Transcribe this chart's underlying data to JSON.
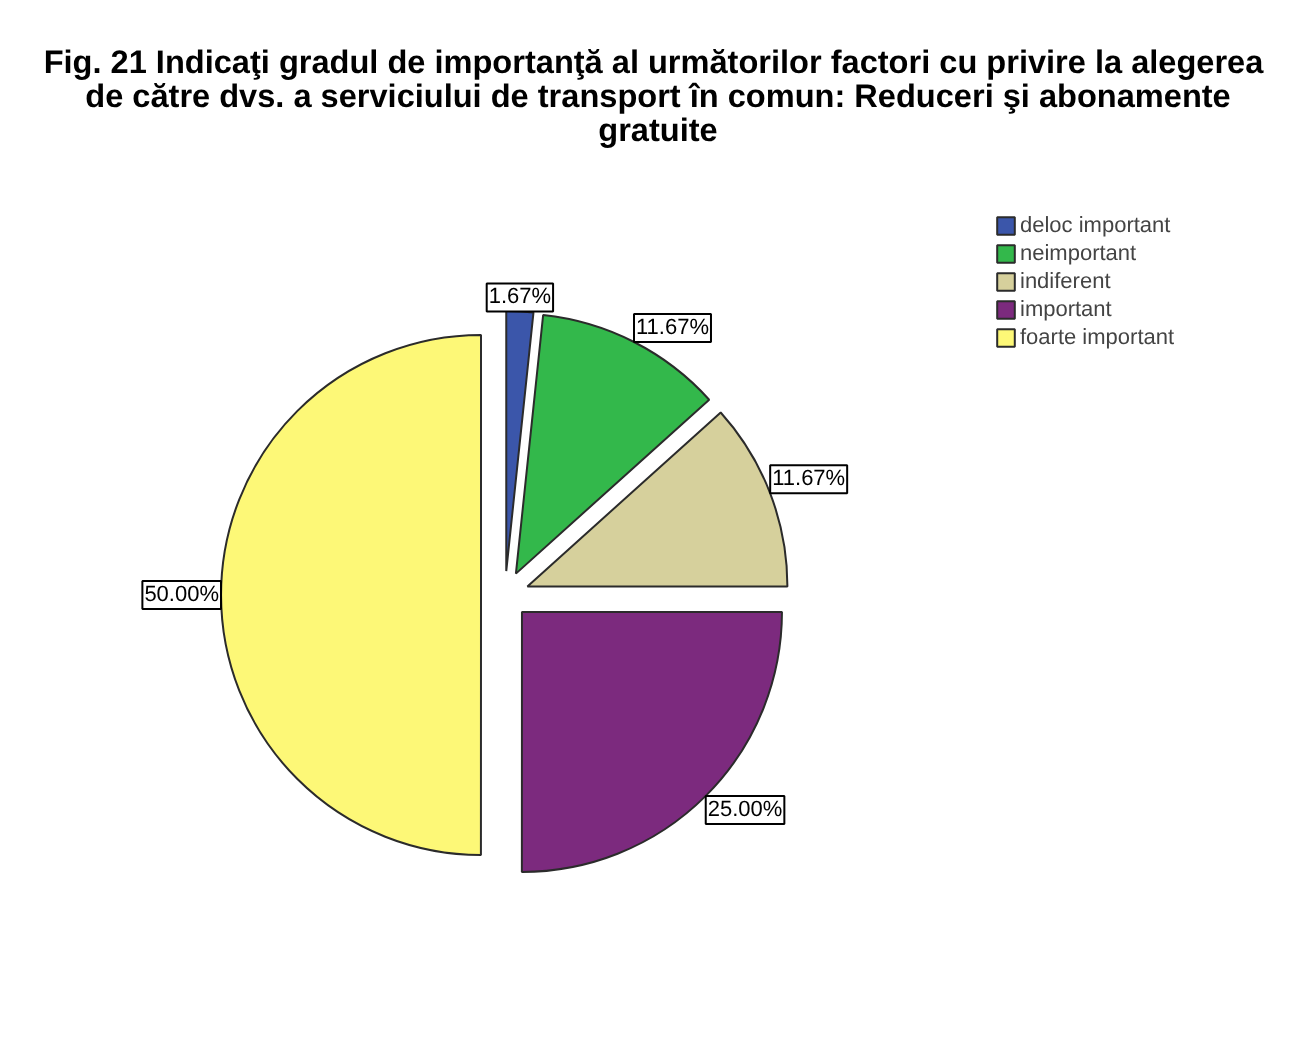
{
  "chart_data": {
    "type": "pie",
    "title": "Fig. 21  Indicaţi gradul de importanţă al următorilor factori cu privire la alegerea\nde către dvs. a serviciului de transport în comun: Reduceri şi abonamente\ngratuite",
    "categories": [
      "deloc important",
      "neimportant",
      "indiferent",
      "important",
      "foarte important"
    ],
    "values": [
      1.67,
      11.67,
      11.67,
      25.0,
      50.0
    ],
    "colors": [
      "#3b56aa",
      "#33b84b",
      "#d6d09c",
      "#7c2a7e",
      "#fdf877"
    ],
    "value_labels": [
      "1.67%",
      "11.67%",
      "11.67%",
      "25.00%",
      "50.00%"
    ],
    "legend": "top right"
  }
}
